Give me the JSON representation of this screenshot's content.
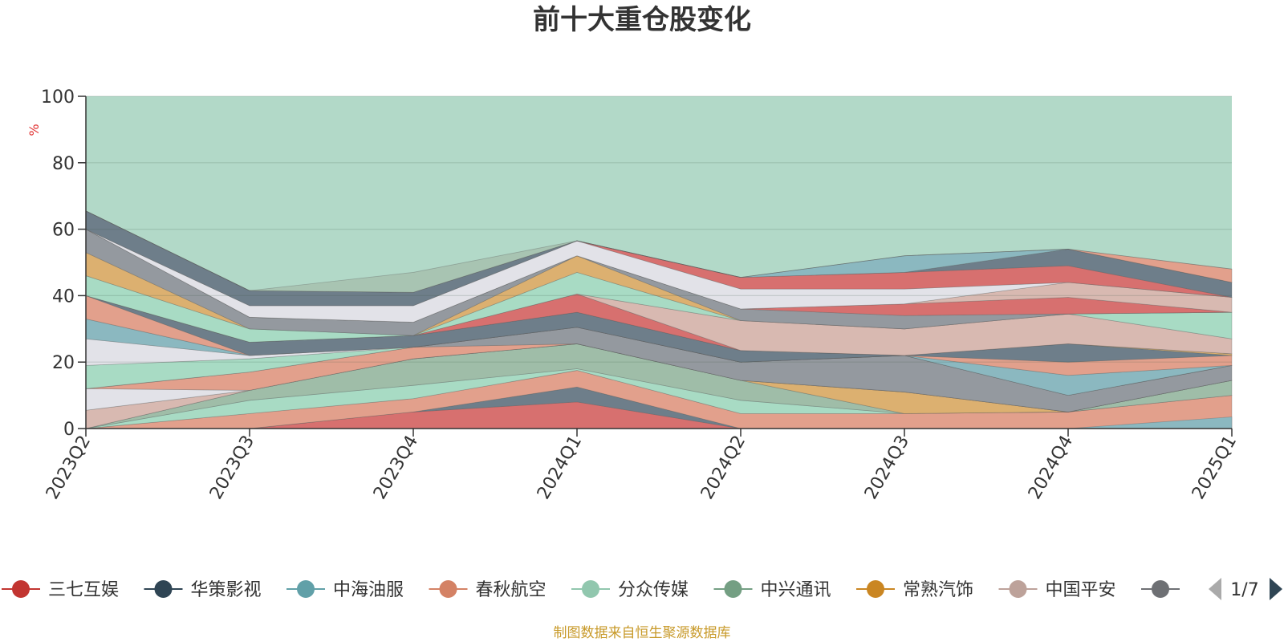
{
  "chart_data": {
    "type": "area",
    "title": "前十大重仓股变化",
    "ylabel": "%",
    "ylim": [
      0,
      100
    ],
    "yticks": [
      0,
      20,
      40,
      60,
      80,
      100
    ],
    "categories": [
      "2023Q2",
      "2023Q3",
      "2023Q4",
      "2024Q1",
      "2024Q2",
      "2024Q3",
      "2024Q4",
      "2025Q1"
    ],
    "background_color": "#b2d9c8",
    "bands": [
      {
        "color": "#d7706f",
        "lower": [
          0,
          0,
          0,
          0,
          0,
          0,
          0,
          0
        ],
        "upper": [
          0,
          0,
          5,
          8,
          0,
          0,
          0,
          0
        ]
      },
      {
        "color": "#6e7e8a",
        "lower": [
          0,
          0,
          5,
          8,
          0,
          0,
          0,
          0
        ],
        "upper": [
          0,
          0,
          5,
          12.5,
          0,
          0,
          0,
          0
        ]
      },
      {
        "color": "#e2a08c",
        "lower": [
          0,
          0,
          5,
          12.5,
          0,
          0,
          0,
          0
        ],
        "upper": [
          0,
          4.5,
          9,
          17.5,
          4.5,
          4.5,
          5,
          10
        ]
      },
      {
        "color": "#8bb8c0",
        "lower": [
          0,
          0,
          0,
          0,
          0,
          0,
          0,
          0
        ],
        "upper": [
          0,
          0,
          0,
          0,
          0,
          0,
          0,
          3.5
        ]
      },
      {
        "color": "#a8dbc4",
        "lower": [
          0,
          4.5,
          9,
          17.5,
          4.5,
          4.5,
          5,
          10
        ],
        "upper": [
          0,
          8.5,
          13,
          18,
          8.5,
          4.5,
          5,
          10
        ]
      },
      {
        "color": "#9fbda8",
        "lower": [
          0,
          8.5,
          13,
          18,
          8.5,
          4.5,
          5,
          10
        ],
        "upper": [
          0,
          11.5,
          21,
          25.5,
          14.5,
          4.5,
          5,
          14.5
        ]
      },
      {
        "color": "#dcb070",
        "lower": [
          0,
          11.5,
          21,
          25.5,
          14.5,
          4.5,
          5,
          14.5
        ],
        "upper": [
          0,
          11.5,
          21,
          25.5,
          14.5,
          11,
          5,
          14.5
        ]
      },
      {
        "color": "#d8b9b1",
        "lower": [
          0,
          11.5,
          21,
          25.5,
          14.5,
          11,
          5,
          14.5
        ],
        "upper": [
          5.5,
          11.5,
          21,
          25.5,
          14.5,
          11,
          5,
          14.5
        ]
      },
      {
        "color": "#e2e2e8",
        "lower": [
          5.5,
          11.5,
          21,
          25.5,
          14.5,
          11,
          5,
          14.5
        ],
        "upper": [
          12,
          11.5,
          21,
          25.5,
          14.5,
          11,
          5,
          14.5
        ]
      },
      {
        "color": "#e2a08c",
        "lower": [
          12,
          11.5,
          21,
          25.5,
          14.5,
          11,
          5,
          14.5
        ],
        "upper": [
          12,
          17,
          24.5,
          25.5,
          14.5,
          11,
          5,
          14.5
        ]
      },
      {
        "color": "#94999f",
        "lower": [
          12,
          17,
          24.5,
          25.5,
          14.5,
          11,
          5,
          14.5
        ],
        "upper": [
          12,
          17,
          24.5,
          30.5,
          20,
          22,
          10,
          19
        ]
      },
      {
        "color": "#a8dbc4",
        "lower": [
          12,
          17,
          24.5,
          30.5,
          20,
          22,
          10,
          19
        ],
        "upper": [
          19,
          21,
          24.5,
          30.5,
          20,
          22,
          10,
          19
        ]
      },
      {
        "color": "#e2e2e8",
        "lower": [
          19,
          21,
          24.5,
          30.5,
          20,
          22,
          10,
          19
        ],
        "upper": [
          27,
          22,
          24.5,
          30.5,
          20,
          22,
          10,
          19
        ]
      },
      {
        "color": "#8bb8c0",
        "lower": [
          27,
          22,
          24.5,
          30.5,
          20,
          22,
          10,
          19
        ],
        "upper": [
          33,
          22,
          24.5,
          30.5,
          20,
          22,
          16,
          19
        ]
      },
      {
        "color": "#e2a08c",
        "lower": [
          33,
          22,
          24.5,
          30.5,
          20,
          22,
          16,
          19
        ],
        "upper": [
          40,
          22,
          24.5,
          30.5,
          20,
          22,
          20,
          22
        ]
      },
      {
        "color": "#6e7e8a",
        "lower": [
          40,
          22,
          24.5,
          30.5,
          20,
          22,
          20,
          22
        ],
        "upper": [
          40,
          26,
          28,
          35,
          23.5,
          22,
          25.5,
          22
        ]
      },
      {
        "color": "#dcb070",
        "lower": [
          40,
          26,
          28,
          35,
          23.5,
          22,
          25.5,
          22
        ],
        "upper": [
          40,
          26,
          28,
          35,
          23.5,
          22,
          25.5,
          22.5
        ]
      },
      {
        "color": "#d7706f",
        "lower": [
          40,
          26,
          28,
          35,
          23.5,
          22,
          25.5,
          22.5
        ],
        "upper": [
          40,
          26,
          28,
          40.5,
          23.5,
          22,
          25.5,
          22.5
        ]
      },
      {
        "color": "#d8b9b1",
        "lower": [
          40,
          26,
          28,
          40.5,
          23.5,
          22,
          25.5,
          22.5
        ],
        "upper": [
          40,
          26,
          28,
          40.5,
          32.5,
          30,
          34.5,
          27
        ]
      },
      {
        "color": "#a8dbc4",
        "lower": [
          40,
          26,
          28,
          40.5,
          32.5,
          30,
          34.5,
          27
        ],
        "upper": [
          46,
          30,
          28,
          47,
          32.5,
          30,
          34.5,
          35
        ]
      },
      {
        "color": "#dcb070",
        "lower": [
          46,
          30,
          28,
          47,
          32.5,
          30,
          34.5,
          35
        ],
        "upper": [
          53,
          30,
          28,
          52,
          32.5,
          30,
          34.5,
          35
        ]
      },
      {
        "color": "#94999f",
        "lower": [
          53,
          30,
          28,
          52,
          32.5,
          30,
          34.5,
          35
        ],
        "upper": [
          60,
          33.5,
          32,
          52,
          36,
          34,
          34.5,
          35
        ]
      },
      {
        "color": "#d7706f",
        "lower": [
          60,
          33.5,
          32,
          52,
          36,
          34,
          34.5,
          35
        ],
        "upper": [
          60,
          33.5,
          32,
          52,
          36,
          37.5,
          39.5,
          35
        ]
      },
      {
        "color": "#d8b9b1",
        "lower": [
          60,
          33.5,
          32,
          52,
          36,
          37.5,
          39.5,
          35
        ],
        "upper": [
          60,
          33.5,
          32,
          52,
          36,
          37.5,
          44,
          39.5
        ]
      },
      {
        "color": "#e2e2e8",
        "lower": [
          60,
          33.5,
          32,
          52,
          36,
          37.5,
          44,
          39.5
        ],
        "upper": [
          60,
          37,
          37,
          56.5,
          42,
          42,
          44,
          39.5
        ]
      },
      {
        "color": "#d7706f",
        "lower": [
          60,
          37,
          37,
          56.5,
          42,
          42,
          44,
          39.5
        ],
        "upper": [
          60,
          37,
          37,
          56.5,
          45.5,
          47,
          49,
          39.5
        ]
      },
      {
        "color": "#6e7e8a",
        "lower": [
          60,
          37,
          37,
          56.5,
          45.5,
          47,
          49,
          39.5
        ],
        "upper": [
          65.5,
          41.5,
          41,
          56.5,
          45.5,
          47,
          54,
          44
        ]
      },
      {
        "color": "#8bb8c0",
        "lower": [
          65.5,
          41.5,
          41,
          56.5,
          45.5,
          47,
          54,
          44
        ],
        "upper": [
          65.5,
          41.5,
          41,
          56.5,
          45.5,
          52,
          54,
          44
        ]
      },
      {
        "color": "#e2a08c",
        "lower": [
          65.5,
          41.5,
          41,
          56.5,
          45.5,
          52,
          54,
          44
        ],
        "upper": [
          65.5,
          41.5,
          41,
          56.5,
          45.5,
          52,
          54,
          48
        ]
      },
      {
        "color": "#a8c4b2",
        "lower": [
          65.5,
          41.5,
          41,
          56.5,
          45.5,
          52,
          54,
          48
        ],
        "upper": [
          65.5,
          41.5,
          47,
          56.5,
          45.5,
          52,
          54,
          48
        ]
      }
    ],
    "legend": {
      "placement": "bottom",
      "page": "1/7",
      "items": [
        {
          "name": "三七互娱",
          "color": "#c23531"
        },
        {
          "name": "华策影视",
          "color": "#2f4554"
        },
        {
          "name": "中海油服",
          "color": "#61a0a8"
        },
        {
          "name": "春秋航空",
          "color": "#d48265"
        },
        {
          "name": "分众传媒",
          "color": "#91c7ae"
        },
        {
          "name": "中兴通讯",
          "color": "#749f83"
        },
        {
          "name": "常熟汽饰",
          "color": "#ca8622"
        },
        {
          "name": "中国平安",
          "color": "#bda29a"
        },
        {
          "name": "",
          "color": "#6e7074"
        }
      ]
    },
    "source": "制图数据来自恒生聚源数据库"
  }
}
